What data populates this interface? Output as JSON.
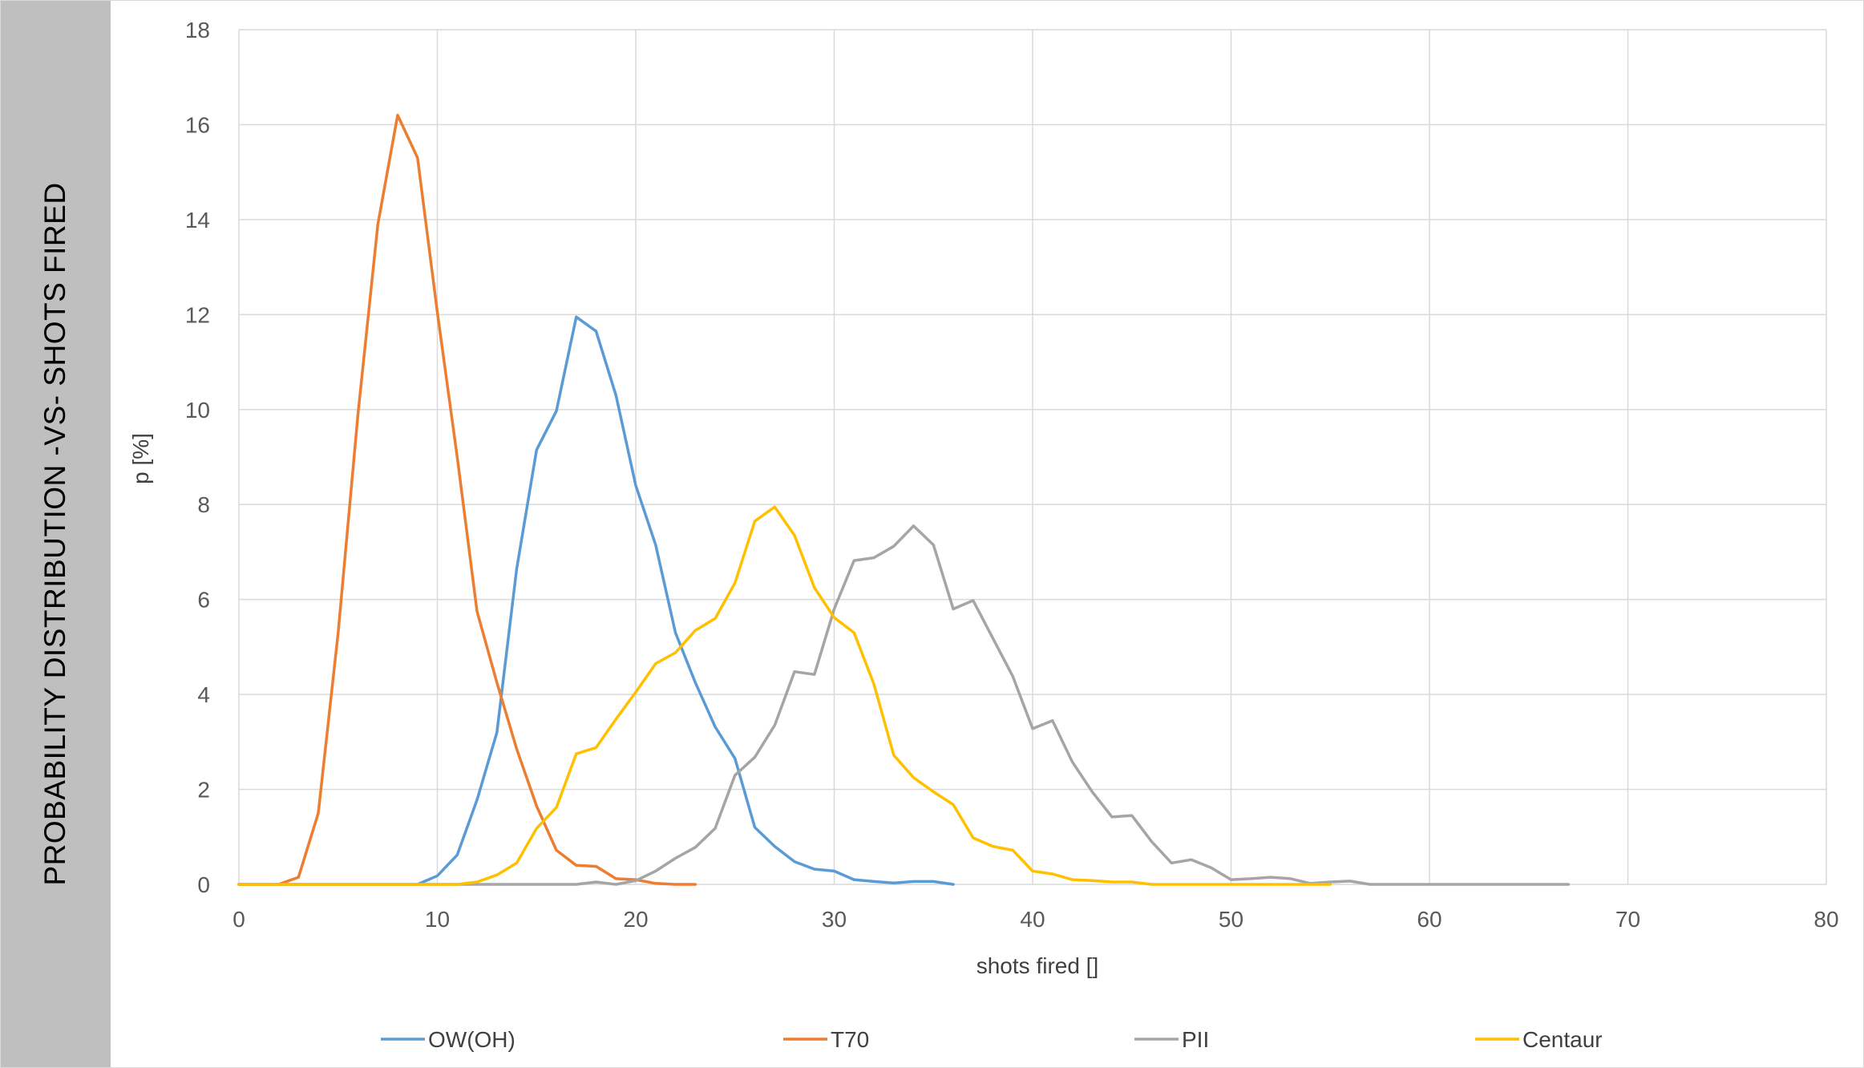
{
  "side_title": "PROBABILITY DISTRIBUTION -VS- SHOTS FIRED",
  "colors": {
    "background": "#ffffff",
    "band": "#bfbfbf",
    "grid": "#d9d9d9",
    "text": "#595959"
  },
  "chart_data": {
    "type": "line",
    "title": "",
    "xlabel": "shots fired []",
    "ylabel": "p [%]",
    "xlim": [
      0,
      80
    ],
    "ylim": [
      0,
      18
    ],
    "xticks": [
      0,
      10,
      20,
      30,
      40,
      50,
      60,
      70,
      80
    ],
    "yticks": [
      0,
      2,
      4,
      6,
      8,
      10,
      12,
      14,
      16,
      18
    ],
    "grid": true,
    "legend_position": "bottom",
    "series": [
      {
        "name": "OW(OH)",
        "color": "#5b9bd5",
        "x": [
          0,
          1,
          2,
          3,
          4,
          5,
          6,
          7,
          8,
          9,
          10,
          11,
          12,
          13,
          14,
          15,
          16,
          17,
          18,
          19,
          20,
          21,
          22,
          23,
          24,
          25,
          26,
          27,
          28,
          29,
          30,
          31,
          32,
          33,
          34,
          35,
          36
        ],
        "y": [
          0,
          0,
          0,
          0,
          0,
          0,
          0,
          0,
          0,
          0,
          0.18,
          0.62,
          1.78,
          3.2,
          6.65,
          9.15,
          9.97,
          11.95,
          11.65,
          10.3,
          8.4,
          7.15,
          5.3,
          4.25,
          3.32,
          2.65,
          1.2,
          0.8,
          0.48,
          0.32,
          0.28,
          0.1,
          0.06,
          0.03,
          0.06,
          0.06,
          0
        ]
      },
      {
        "name": "T70",
        "color": "#ed7d31",
        "x": [
          0,
          1,
          2,
          3,
          4,
          5,
          6,
          7,
          8,
          9,
          10,
          11,
          12,
          13,
          14,
          15,
          16,
          17,
          18,
          19,
          20,
          21,
          22,
          23
        ],
        "y": [
          0,
          0,
          0,
          0.15,
          1.5,
          5.3,
          9.9,
          13.9,
          16.2,
          15.3,
          12.05,
          9.0,
          5.75,
          4.25,
          2.85,
          1.65,
          0.72,
          0.4,
          0.38,
          0.12,
          0.1,
          0.02,
          0,
          0
        ]
      },
      {
        "name": "PII",
        "color": "#a5a5a5",
        "x": [
          0,
          1,
          2,
          3,
          4,
          5,
          6,
          7,
          8,
          9,
          10,
          11,
          12,
          13,
          14,
          15,
          16,
          17,
          18,
          19,
          20,
          21,
          22,
          23,
          24,
          25,
          26,
          27,
          28,
          29,
          30,
          31,
          32,
          33,
          34,
          35,
          36,
          37,
          38,
          39,
          40,
          41,
          42,
          43,
          44,
          45,
          46,
          47,
          48,
          49,
          50,
          51,
          52,
          53,
          54,
          55,
          56,
          57,
          58,
          59,
          60,
          61,
          62,
          63,
          64,
          65,
          66,
          67
        ],
        "y": [
          0,
          0,
          0,
          0,
          0,
          0,
          0,
          0,
          0,
          0,
          0,
          0,
          0,
          0,
          0,
          0,
          0,
          0,
          0.05,
          0,
          0.08,
          0.28,
          0.55,
          0.78,
          1.18,
          2.3,
          2.68,
          3.35,
          4.48,
          4.42,
          5.8,
          6.82,
          6.88,
          7.12,
          7.55,
          7.15,
          5.8,
          5.98,
          5.18,
          4.38,
          3.28,
          3.45,
          2.58,
          1.95,
          1.42,
          1.45,
          0.9,
          0.45,
          0.52,
          0.35,
          0.1,
          0.12,
          0.15,
          0.12,
          0.02,
          0.05,
          0.07,
          0,
          0,
          0,
          0,
          0,
          0,
          0,
          0,
          0,
          0,
          0
        ]
      },
      {
        "name": "Centaur",
        "color": "#ffc000",
        "x": [
          0,
          1,
          2,
          3,
          4,
          5,
          6,
          7,
          8,
          9,
          10,
          11,
          12,
          13,
          14,
          15,
          16,
          17,
          18,
          19,
          20,
          21,
          22,
          23,
          24,
          25,
          26,
          27,
          28,
          29,
          30,
          31,
          32,
          33,
          34,
          35,
          36,
          37,
          38,
          39,
          40,
          41,
          42,
          43,
          44,
          45,
          46,
          47,
          48,
          49,
          50,
          51,
          52,
          53,
          54,
          55
        ],
        "y": [
          0,
          0,
          0,
          0,
          0,
          0,
          0,
          0,
          0,
          0,
          0,
          0,
          0.05,
          0.2,
          0.45,
          1.18,
          1.62,
          2.75,
          2.88,
          3.48,
          4.05,
          4.65,
          4.88,
          5.35,
          5.6,
          6.35,
          7.65,
          7.95,
          7.35,
          6.25,
          5.62,
          5.3,
          4.22,
          2.72,
          2.25,
          1.95,
          1.68,
          0.98,
          0.8,
          0.72,
          0.28,
          0.22,
          0.1,
          0.08,
          0.05,
          0.05,
          0,
          0,
          0,
          0,
          0,
          0,
          0,
          0,
          0,
          0
        ]
      }
    ]
  }
}
